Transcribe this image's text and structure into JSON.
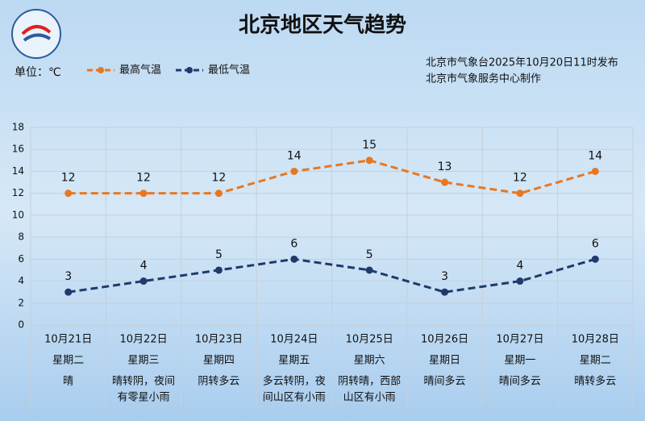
{
  "chart_data": {
    "type": "line",
    "title": "北京地区天气趋势",
    "unit": "单位：℃",
    "source": [
      "北京市气象台2025年10月20日11时发布",
      "北京市气象服务中心制作"
    ],
    "categories": [
      "10月21日",
      "10月22日",
      "10月23日",
      "10月24日",
      "10月25日",
      "10月26日",
      "10月27日",
      "10月28日"
    ],
    "weekdays": [
      "星期二",
      "星期三",
      "星期四",
      "星期五",
      "星期六",
      "星期日",
      "星期一",
      "星期二"
    ],
    "weather": [
      [
        "晴"
      ],
      [
        "晴转阴，夜间",
        "有零星小雨"
      ],
      [
        "阴转多云"
      ],
      [
        "多云转阴，夜",
        "间山区有小雨"
      ],
      [
        "阴转晴，西部",
        "山区有小雨"
      ],
      [
        "晴间多云"
      ],
      [
        "晴间多云"
      ],
      [
        "晴转多云"
      ]
    ],
    "series": [
      {
        "name": "最高气温",
        "color": "#e87722",
        "values": [
          12,
          12,
          12,
          14,
          15,
          13,
          12,
          14
        ]
      },
      {
        "name": "最低气温",
        "color": "#1f3a6b",
        "values": [
          3,
          4,
          5,
          6,
          5,
          3,
          4,
          6
        ]
      }
    ],
    "ylim": [
      0,
      18
    ],
    "yticks": [
      0,
      2,
      4,
      6,
      8,
      10,
      12,
      14,
      16,
      18
    ],
    "grid": true,
    "legend": "top-left"
  }
}
